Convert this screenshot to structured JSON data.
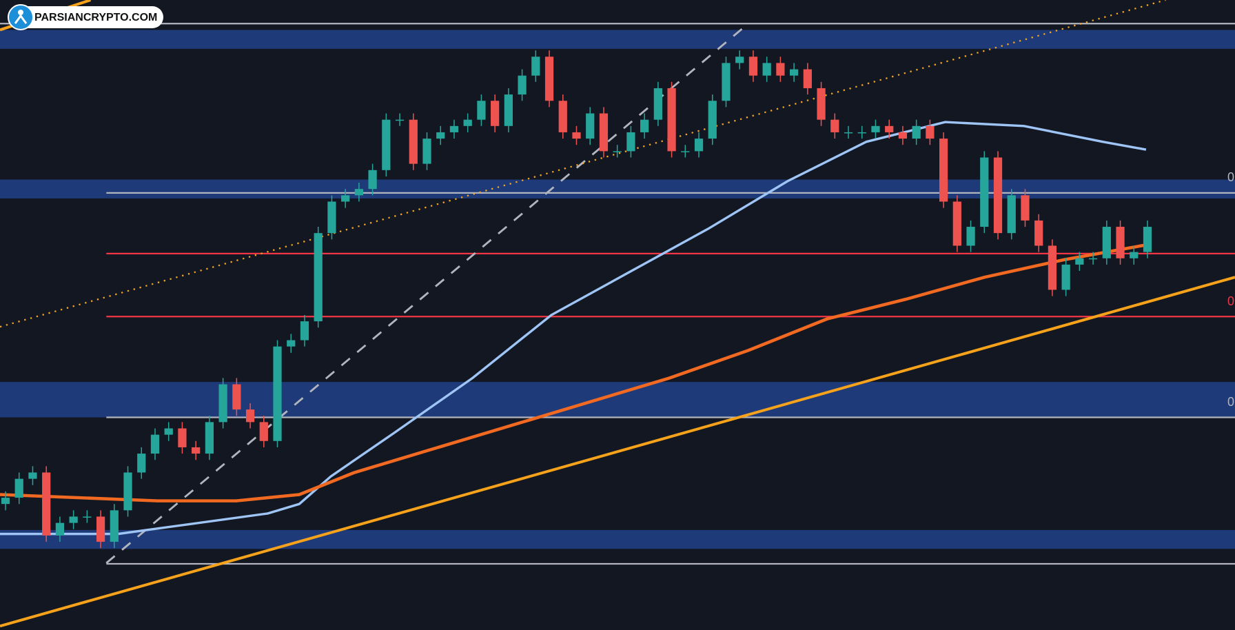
{
  "logo": {
    "text": "PARSIANCRYPTO.COM"
  },
  "chart_data": {
    "type": "candlestick",
    "open": [
      20,
      21,
      24,
      25,
      15,
      17,
      18,
      18,
      14,
      19,
      25,
      28,
      31,
      32,
      29,
      28,
      33,
      39,
      35,
      33,
      30,
      45,
      46,
      49,
      63,
      68,
      69,
      70,
      73,
      81,
      81,
      74,
      78,
      79,
      80,
      81,
      84,
      80,
      85,
      88,
      91,
      84,
      79,
      78,
      82,
      76,
      76,
      79,
      81,
      86,
      76,
      76,
      78,
      84,
      90,
      91,
      88,
      90,
      88,
      89,
      86,
      81,
      79,
      79,
      79,
      80,
      79,
      78,
      80,
      78,
      68,
      61,
      64,
      75,
      63,
      69,
      65,
      61,
      54,
      58,
      59,
      59,
      64,
      59,
      60
    ],
    "high": [
      22,
      25,
      26,
      26,
      18,
      19,
      19,
      19,
      20,
      26,
      29,
      32,
      33,
      33,
      30,
      34,
      40,
      40,
      36,
      34,
      46,
      47,
      50,
      64,
      69,
      70,
      71,
      74,
      82,
      82,
      82,
      79,
      80,
      81,
      82,
      85,
      85,
      86,
      89,
      92,
      92,
      85,
      80,
      83,
      83,
      77,
      80,
      82,
      87,
      87,
      77,
      79,
      85,
      91,
      92,
      92,
      91,
      91,
      90,
      90,
      87,
      82,
      80,
      80,
      81,
      81,
      80,
      81,
      81,
      79,
      69,
      65,
      76,
      76,
      70,
      70,
      66,
      62,
      59,
      60,
      60,
      65,
      65,
      61,
      65
    ],
    "low": [
      19,
      20,
      23,
      14,
      14,
      16,
      17,
      13,
      13,
      18,
      24,
      27,
      30,
      28,
      27,
      27,
      32,
      34,
      32,
      29,
      29,
      44,
      45,
      48,
      62,
      67,
      68,
      69,
      72,
      80,
      73,
      73,
      77,
      78,
      79,
      80,
      79,
      79,
      84,
      87,
      83,
      78,
      77,
      77,
      75,
      75,
      75,
      78,
      80,
      75,
      75,
      75,
      77,
      83,
      89,
      87,
      87,
      87,
      87,
      85,
      80,
      78,
      78,
      78,
      78,
      78,
      77,
      77,
      77,
      67,
      60,
      60,
      63,
      62,
      62,
      64,
      60,
      53,
      53,
      57,
      58,
      58,
      58,
      58,
      59
    ],
    "close": [
      21,
      24,
      25,
      15,
      17,
      18,
      18,
      14,
      19,
      25,
      28,
      31,
      32,
      29,
      28,
      33,
      39,
      35,
      33,
      30,
      45,
      46,
      49,
      63,
      68,
      69,
      70,
      73,
      81,
      81,
      74,
      78,
      79,
      80,
      81,
      84,
      80,
      85,
      88,
      91,
      84,
      79,
      78,
      82,
      76,
      76,
      79,
      81,
      86,
      76,
      76,
      78,
      84,
      90,
      91,
      88,
      90,
      88,
      89,
      86,
      81,
      79,
      79,
      79,
      80,
      79,
      78,
      80,
      78,
      68,
      61,
      64,
      75,
      63,
      69,
      65,
      61,
      54,
      58,
      59,
      59,
      64,
      59,
      60,
      64
    ],
    "up_color": "#26a69a",
    "down_color": "#ef5350",
    "ylim": [
      0,
      100
    ],
    "annotations": [
      "0",
      "0",
      "0"
    ]
  }
}
